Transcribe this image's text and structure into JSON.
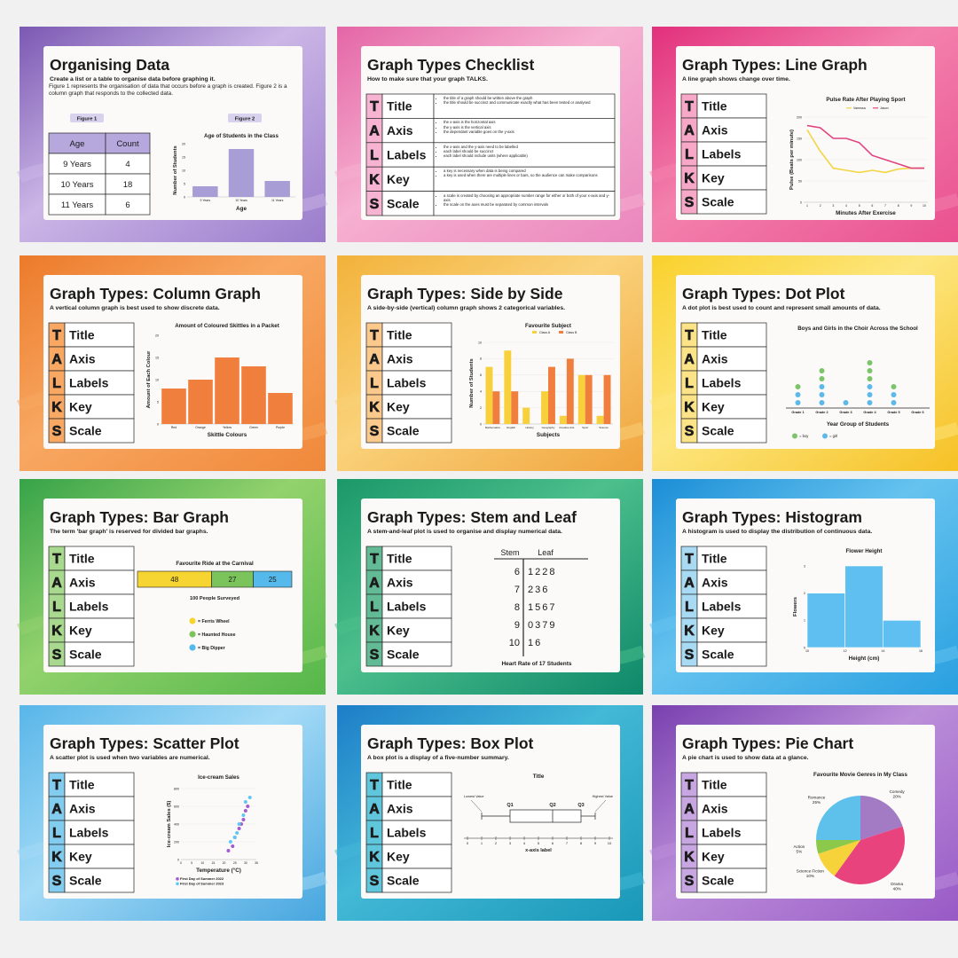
{
  "talks": {
    "letters": [
      "T",
      "A",
      "L",
      "K",
      "S"
    ],
    "words": [
      "Title",
      "Axis",
      "Labels",
      "Key",
      "Scale"
    ]
  },
  "slides": [
    {
      "title": "Organising Data",
      "subtitle": "Create a list or a table to organise data before graphing it.",
      "paragraph": "Figure 1 represents the organisation of data that occurs before a graph is created. Figure 2 is a column graph that responds to the collected data.",
      "figures": [
        "Figure 1",
        "Figure 2"
      ],
      "table": {
        "header": [
          "Age",
          "Count"
        ],
        "rows": [
          [
            "9 Years",
            "4"
          ],
          [
            "10 Years",
            "18"
          ],
          [
            "11 Years",
            "6"
          ]
        ]
      },
      "chart": {
        "type": "bar",
        "title": "Age of Students in the Class",
        "ylabel": "Number of Students",
        "xlabel": "Age",
        "categories": [
          "9 Years",
          "10 Years",
          "11 Years"
        ],
        "values": [
          4,
          18,
          6
        ],
        "color": "#a99dd6",
        "ylim": [
          0,
          20
        ],
        "yticks": [
          0,
          5,
          10,
          15,
          20
        ],
        "grid": false
      }
    },
    {
      "title": "Graph Types Checklist",
      "subtitle": "How to make sure that your graph TALKS.",
      "checklist": [
        [
          "the title of a graph should be written above the graph",
          "the title should be succinct and communicate exactly what has been tested or analysed"
        ],
        [
          "the x-axis is the horizontal axis",
          "the y-axis is the vertical axis",
          "the dependant variable goes on the y-axis"
        ],
        [
          "the x-axis and the y-axis need to be labelled",
          "each label should be succinct",
          "each label should include units (where applicable)"
        ],
        [
          "a key is necessary when data is being compared",
          "a key is used when there are multiple lines or bars, so the audience can make comparisons"
        ],
        [
          "a scale is created by choosing an appropriate number range for either or both of your x-axis and y-axis",
          "the scale on the axes must be separated by common intervals"
        ]
      ]
    },
    {
      "title": "Graph Types: Line Graph",
      "subtitle": "A line graph shows change over time.",
      "chart": {
        "type": "line",
        "title": "Pulse Rate After Playing Sport",
        "ylabel": "Pulse (Beats per minute)",
        "xlabel": "Minutes After Exercise",
        "x": [
          1,
          2,
          3,
          4,
          5,
          6,
          7,
          8,
          9,
          10
        ],
        "xlim": [
          1,
          10
        ],
        "xticks": [
          1,
          2,
          3,
          4,
          5,
          6,
          7,
          8,
          9,
          10
        ],
        "ylim": [
          0,
          200
        ],
        "yticks": [
          0,
          50,
          100,
          150,
          200
        ],
        "grid": true,
        "series": [
          {
            "name": "Vanessa",
            "color": "#f3d545",
            "values": [
              170,
              120,
              80,
              75,
              70,
              75,
              70,
              78,
              80,
              80
            ]
          },
          {
            "name": "Jason",
            "color": "#e0437f",
            "values": [
              180,
              175,
              150,
              150,
              140,
              110,
              100,
              90,
              80,
              80
            ]
          }
        ]
      }
    },
    {
      "title": "Graph Types: Column Graph",
      "subtitle": "A vertical column graph is best used to show discrete data.",
      "chart": {
        "type": "bar",
        "title": "Amount of Coloured Skittles in a Packet",
        "ylabel": "Amount of Each Colour",
        "xlabel": "Skittle Colours",
        "categories": [
          "Red",
          "Orange",
          "Yellow",
          "Green",
          "Purple"
        ],
        "values": [
          8,
          10,
          15,
          13,
          7
        ],
        "color": "#f07f3d",
        "ylim": [
          0,
          20
        ],
        "yticks": [
          0,
          5,
          10,
          15,
          20
        ],
        "grid": false
      }
    },
    {
      "title": "Graph Types: Side by Side",
      "subtitle": "A side-by-side (vertical) column graph shows 2 categorical variables.",
      "chart": {
        "type": "grouped",
        "title": "Favourite Subject",
        "ylabel": "Number of Students",
        "xlabel": "Subjects",
        "categories": [
          "Mathematics",
          "English",
          "History",
          "Geography",
          "Creative Arts",
          "Sport",
          "Science"
        ],
        "ylim": [
          0,
          10
        ],
        "yticks": [
          0,
          2,
          4,
          6,
          8,
          10
        ],
        "grid": true,
        "series": [
          {
            "name": "Class A",
            "color": "#f8d03b",
            "values": [
              7,
              9,
              2,
              4,
              1,
              6,
              1
            ]
          },
          {
            "name": "Class B",
            "color": "#f07f3d",
            "values": [
              4,
              4,
              0,
              7,
              8,
              6,
              6
            ]
          }
        ]
      }
    },
    {
      "title": "Graph Types: Dot Plot",
      "subtitle": "A dot plot is best used to count and represent small amounts of data.",
      "chart": {
        "type": "dot",
        "title": "Boys and Girls in the Choir Across the School",
        "xlabel": "Year Group of Students",
        "categories": [
          "Grade 1",
          "Grade 2",
          "Grade 3",
          "Grade 4",
          "Grade 5",
          "Grade 6"
        ],
        "series": [
          {
            "name": "= boy",
            "color": "#7cc46a",
            "values": [
              1,
              2,
              0,
              3,
              1,
              0
            ]
          },
          {
            "name": "= girl",
            "color": "#5cb9ea",
            "values": [
              2,
              3,
              1,
              3,
              2,
              0
            ]
          }
        ]
      }
    },
    {
      "title": "Graph Types: Bar Graph",
      "subtitle": "The term 'bar graph' is reserved for divided bar graphs.",
      "chart": {
        "type": "divided",
        "title": "Favourite Ride at the Carnival",
        "note": "100 People Surveyed",
        "xlim": [
          0,
          100
        ],
        "series": [
          {
            "name": "= Ferris Wheel",
            "color": "#f6d432",
            "values": [
              48
            ]
          },
          {
            "name": "= Haunted House",
            "color": "#7bc35b",
            "values": [
              27
            ]
          },
          {
            "name": "= Big Dipper",
            "color": "#56b9ec",
            "values": [
              25
            ]
          }
        ]
      }
    },
    {
      "title": "Graph Types: Stem and Leaf",
      "subtitle": "A stem-and-leaf plot is used to organise and display numerical data.",
      "stem_leaf": {
        "header": [
          "Stem",
          "Leaf"
        ],
        "rows": [
          [
            "6",
            "1228"
          ],
          [
            "7",
            "236"
          ],
          [
            "8",
            "1567"
          ],
          [
            "9",
            "0379"
          ],
          [
            "10",
            "16"
          ]
        ],
        "caption": "Heart Rate of 17 Students"
      }
    },
    {
      "title": "Graph Types: Histogram",
      "subtitle": "A histogram is used to display the distribution of continuous data.",
      "chart": {
        "type": "histogram",
        "title": "Flower Height",
        "ylabel": "Flowers",
        "xlabel": "Height (cm)",
        "bins": [
          10,
          12,
          14,
          16
        ],
        "values": [
          2,
          3,
          1
        ],
        "color": "#5fbff0",
        "xlim": [
          10,
          16
        ],
        "xticks": [
          10,
          12,
          14,
          16
        ],
        "ylim": [
          0,
          3
        ],
        "yticks": [
          0,
          1,
          2,
          3
        ]
      }
    },
    {
      "title": "Graph Types: Scatter Plot",
      "subtitle": "A scatter plot is used when two variables are numerical.",
      "chart": {
        "type": "scatter",
        "title": "Ice-cream Sales",
        "ylabel": "Ice-cream Sales ($)",
        "xlabel": "Temperature (°C)",
        "xlim": [
          0,
          35
        ],
        "xticks": [
          0,
          5,
          10,
          15,
          20,
          25,
          30,
          35
        ],
        "ylim": [
          0,
          800
        ],
        "yticks": [
          0,
          200,
          400,
          600,
          800
        ],
        "grid": true,
        "series": [
          {
            "name": "First Day of Summer 2022",
            "color": "#a35bd1",
            "x": [
              22,
              24,
              25,
              27,
              28,
              29,
              30,
              31
            ],
            "values": [
              100,
              150,
              250,
              350,
              400,
              450,
              550,
              600
            ]
          },
          {
            "name": "First Day of Summer 2023",
            "color": "#5fc8f0",
            "x": [
              23,
              25,
              26,
              27,
              29,
              30,
              32
            ],
            "values": [
              200,
              250,
              300,
              400,
              500,
              650,
              700
            ]
          }
        ]
      }
    },
    {
      "title": "Graph Types: Box Plot",
      "subtitle": "A box plot is a display of a five-number summary.",
      "chart": {
        "type": "box",
        "title": "Title",
        "xlabel": "x-axis label",
        "xlim": [
          0,
          10
        ],
        "xticks": [
          0,
          1,
          2,
          3,
          4,
          5,
          6,
          7,
          8,
          9,
          10
        ],
        "stats": {
          "min": 1,
          "q1": 3,
          "median": 6,
          "q3": 8,
          "max": 9
        },
        "labels": {
          "min": "Lowest Value",
          "max": "Highest Value",
          "q1": "Q1",
          "median": "Q2",
          "q3": "Q3"
        }
      }
    },
    {
      "title": "Graph Types: Pie Chart",
      "subtitle": "A pie chart is used to show data at a glance.",
      "chart": {
        "type": "pie",
        "title": "Favourite Movie Genres in My Class",
        "categories": [
          "Comedy",
          "Drama",
          "Science Fiction",
          "Action",
          "Romance"
        ],
        "values": [
          20,
          40,
          10,
          5,
          25
        ],
        "value_labels": [
          "20%",
          "40%",
          "10%",
          "5%",
          "25%"
        ],
        "colors": [
          "#a27bc4",
          "#e8437c",
          "#f6d23b",
          "#8cc94b",
          "#5dc1ec"
        ]
      }
    }
  ]
}
